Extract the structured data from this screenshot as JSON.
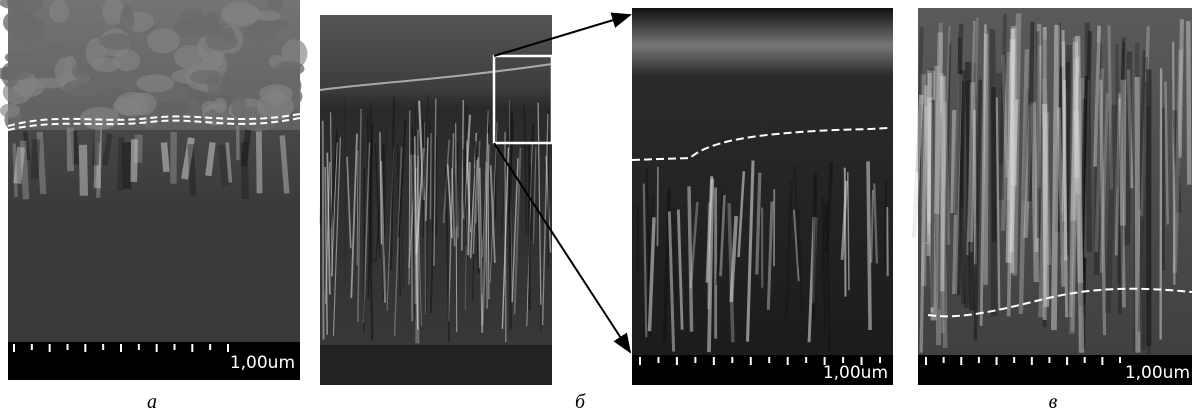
{
  "panels": [
    {
      "label": "а",
      "scale_bar_label": "1,00um"
    },
    {
      "label": "б",
      "scale_bar_label": "1,00um"
    },
    {
      "label": "в",
      "scale_bar_label": "1,00um"
    }
  ]
}
